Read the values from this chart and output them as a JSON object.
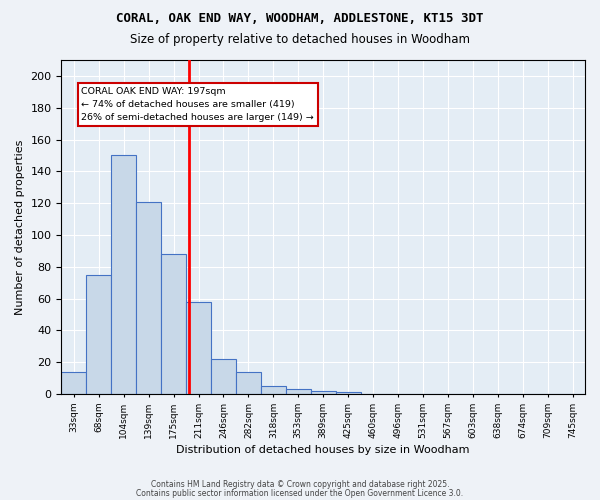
{
  "title_line1": "CORAL, OAK END WAY, WOODHAM, ADDLESTONE, KT15 3DT",
  "title_line2": "Size of property relative to detached houses in Woodham",
  "xlabel": "Distribution of detached houses by size in Woodham",
  "ylabel": "Number of detached properties",
  "bin_labels": [
    "33sqm",
    "68sqm",
    "104sqm",
    "139sqm",
    "175sqm",
    "211sqm",
    "246sqm",
    "282sqm",
    "318sqm",
    "353sqm",
    "389sqm",
    "425sqm",
    "460sqm",
    "496sqm",
    "531sqm",
    "567sqm",
    "603sqm",
    "638sqm",
    "674sqm",
    "709sqm",
    "745sqm"
  ],
  "bar_heights": [
    14,
    75,
    150,
    121,
    88,
    58,
    22,
    14,
    5,
    3,
    2,
    1,
    0,
    0,
    0,
    0,
    0,
    0,
    0,
    0,
    0
  ],
  "bar_color": "#c8d8e8",
  "bar_edge_color": "#4472c4",
  "annotation_title": "CORAL OAK END WAY: 197sqm",
  "annotation_line1": "← 74% of detached houses are smaller (419)",
  "annotation_line2": "26% of semi-detached houses are larger (149) →",
  "annotation_box_color": "#ffffff",
  "annotation_border_color": "#cc0000",
  "red_line_x": 4.61,
  "ylim": [
    0,
    210
  ],
  "yticks": [
    0,
    20,
    40,
    60,
    80,
    100,
    120,
    140,
    160,
    180,
    200
  ],
  "footer_line1": "Contains HM Land Registry data © Crown copyright and database right 2025.",
  "footer_line2": "Contains public sector information licensed under the Open Government Licence 3.0.",
  "bg_color": "#eef2f7",
  "plot_bg_color": "#e4edf5"
}
